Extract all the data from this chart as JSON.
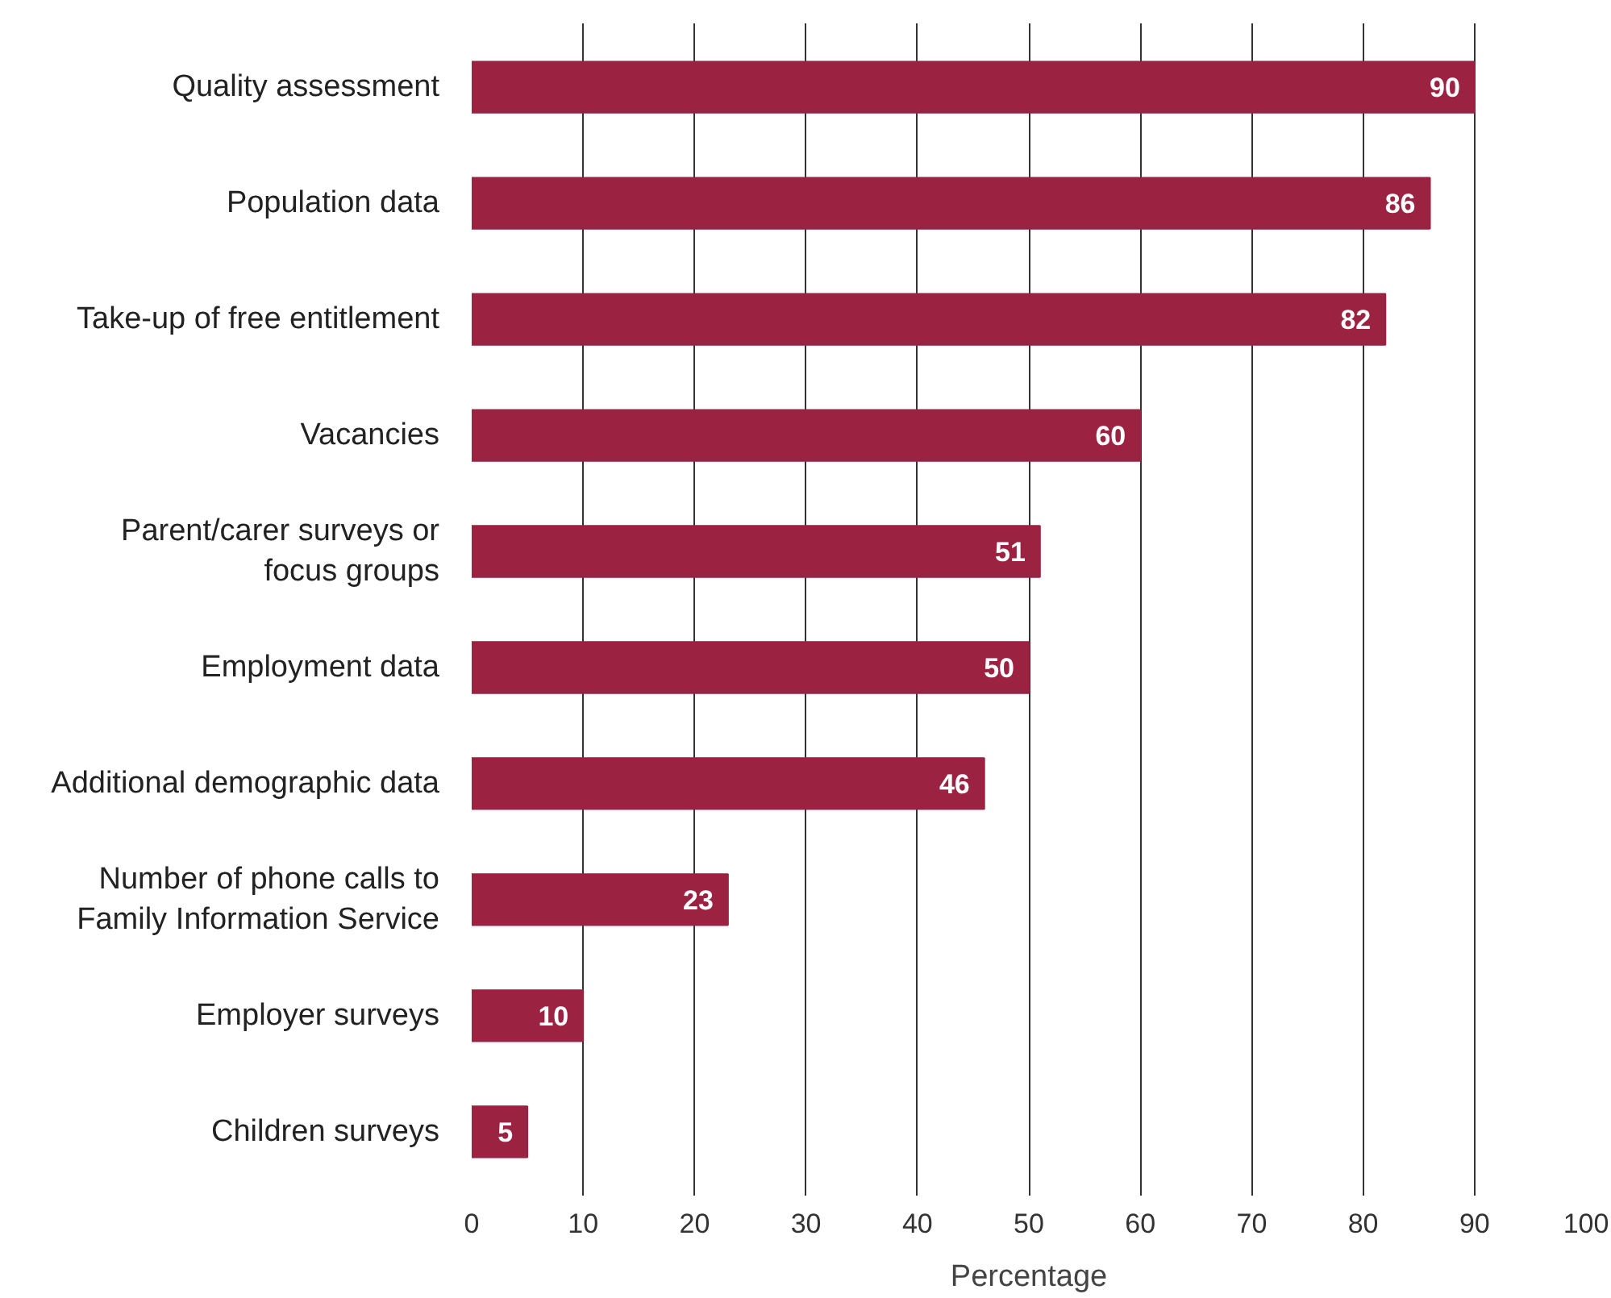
{
  "chart_data": {
    "type": "bar",
    "orientation": "horizontal",
    "xlabel": "Percentage",
    "categories": [
      "Quality assessment",
      "Population data",
      "Take-up of free entitlement",
      "Vacancies",
      "Parent/carer surveys or\nfocus groups",
      "Employment data",
      "Additional demographic data",
      "Number of phone calls to\nFamily Information Service",
      "Employer surveys",
      "Children surveys"
    ],
    "values": [
      90,
      86,
      82,
      60,
      51,
      50,
      46,
      23,
      10,
      5
    ],
    "color": "#9b2240",
    "data_labels": true,
    "grid": "x",
    "xlim": [
      0,
      100
    ],
    "xticks": [
      0,
      10,
      20,
      30,
      40,
      50,
      60,
      70,
      80,
      90,
      100
    ]
  }
}
